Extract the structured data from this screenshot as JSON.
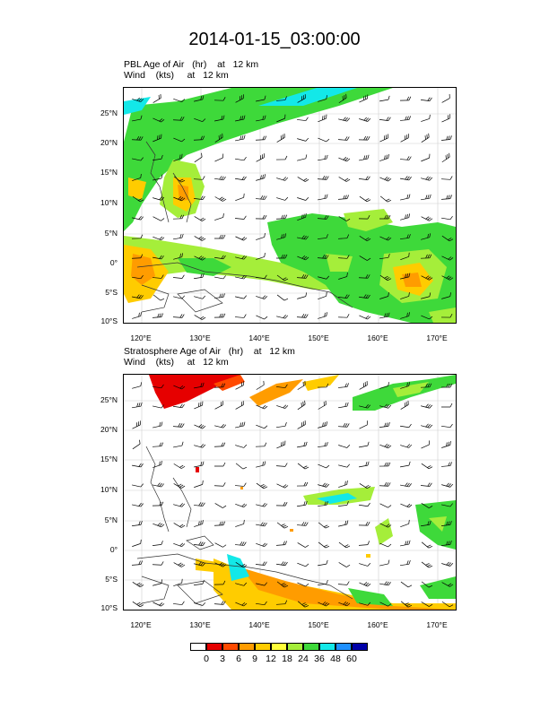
{
  "title": "2014-01-15_03:00:00",
  "panels": [
    {
      "name": "pbl",
      "line1": "PBL Age of Air   (hr)    at   12 km",
      "line2": "Wind    (kts)     at   12 km"
    },
    {
      "name": "strat",
      "line1": "Stratosphere Age of Air   (hr)    at   12 km",
      "line2": "Wind    (kts)     at   12 km"
    }
  ],
  "axes": {
    "lat_labels": [
      "25°N",
      "20°N",
      "15°N",
      "10°N",
      "5°N",
      "0°",
      "5°S",
      "10°S"
    ],
    "lon_labels": [
      "120°E",
      "130°E",
      "140°E",
      "150°E",
      "160°E",
      "170°E"
    ],
    "lat_range": [
      -10,
      29.5
    ],
    "lon_range": [
      117,
      173
    ]
  },
  "legend": {
    "labels": [
      "0",
      "3",
      "6",
      "9",
      "12",
      "18",
      "24",
      "36",
      "48",
      "60"
    ],
    "colors": [
      "#ffffff",
      "#e60000",
      "#ff4a00",
      "#ff9c00",
      "#ffcc00",
      "#ffff3a",
      "#a5ee3a",
      "#3ed93a",
      "#13e8e8",
      "#1e90ff",
      "#0000a8"
    ]
  },
  "colors": {
    "green": "#3ed93a",
    "lightgreen": "#a5ee3a",
    "yellow": "#ffff3a",
    "orange": "#ff9c00",
    "red": "#e60000",
    "cyan": "#13e8e8"
  }
}
